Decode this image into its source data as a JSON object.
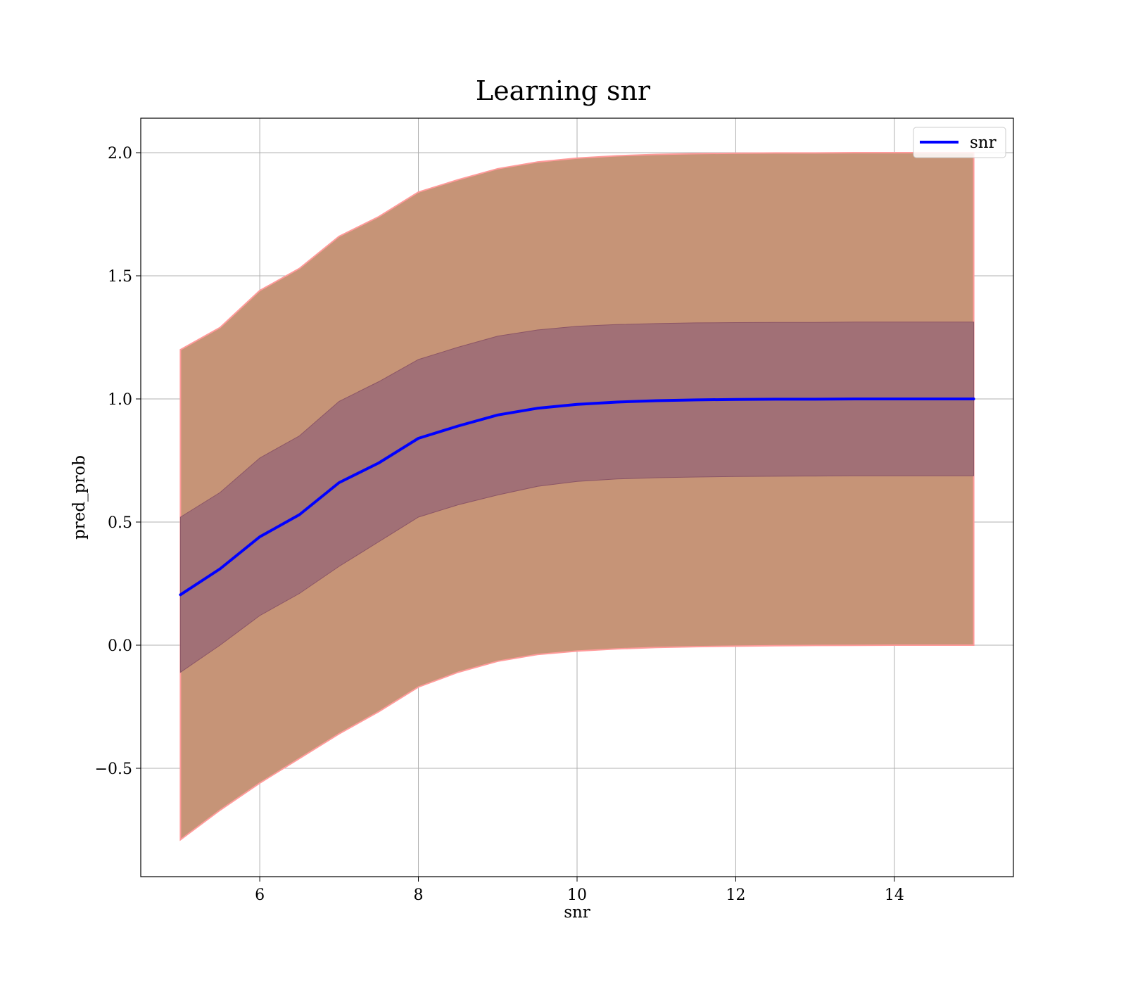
{
  "chart_data": {
    "type": "line",
    "title": "Learning snr",
    "xlabel": "snr",
    "ylabel": "pred_prob",
    "xlim": [
      4.5,
      15.5
    ],
    "ylim": [
      -0.94,
      2.14
    ],
    "xticks": [
      6,
      8,
      10,
      12,
      14
    ],
    "xtick_labels": [
      "6",
      "8",
      "10",
      "12",
      "14"
    ],
    "yticks": [
      -0.5,
      0.0,
      0.5,
      1.0,
      1.5,
      2.0
    ],
    "ytick_labels": [
      "−0.5",
      "0.0",
      "0.5",
      "1.0",
      "1.5",
      "2.0"
    ],
    "grid": true,
    "legend": {
      "position": "top-right",
      "entries": [
        "snr"
      ]
    },
    "colors": {
      "line": "#0000ff",
      "outer_band": "#c69477",
      "outer_band_edge": "#ff9a9a",
      "inner_band": "#a17076",
      "inner_band_edge": "#8b5566"
    },
    "x": [
      5.0,
      5.5,
      6.0,
      6.5,
      7.0,
      7.5,
      8.0,
      8.5,
      9.0,
      9.5,
      10.0,
      10.5,
      11.0,
      11.5,
      12.0,
      12.5,
      13.0,
      13.5,
      14.0,
      14.5,
      15.0
    ],
    "series": [
      {
        "name": "snr",
        "values": [
          0.205,
          0.31,
          0.44,
          0.53,
          0.66,
          0.74,
          0.84,
          0.89,
          0.935,
          0.962,
          0.978,
          0.987,
          0.993,
          0.996,
          0.998,
          0.999,
          0.999,
          1.0,
          1.0,
          1.0,
          1.0
        ]
      }
    ],
    "bands": [
      {
        "kind": "outer",
        "lower": [
          -0.79,
          -0.67,
          -0.56,
          -0.46,
          -0.36,
          -0.27,
          -0.17,
          -0.11,
          -0.065,
          -0.038,
          -0.024,
          -0.015,
          -0.009,
          -0.006,
          -0.004,
          -0.002,
          -0.001,
          -0.0005,
          0.0,
          0.0,
          0.0
        ],
        "upper": [
          1.2,
          1.29,
          1.44,
          1.53,
          1.66,
          1.74,
          1.84,
          1.89,
          1.935,
          1.962,
          1.978,
          1.987,
          1.993,
          1.996,
          1.998,
          1.999,
          1.999,
          2.0,
          2.0,
          2.0,
          2.0
        ]
      },
      {
        "kind": "inner",
        "lower": [
          -0.11,
          0.0,
          0.12,
          0.21,
          0.32,
          0.42,
          0.52,
          0.57,
          0.61,
          0.645,
          0.665,
          0.675,
          0.68,
          0.683,
          0.685,
          0.686,
          0.687,
          0.688,
          0.688,
          0.688,
          0.688
        ],
        "upper": [
          0.52,
          0.62,
          0.76,
          0.85,
          0.99,
          1.07,
          1.16,
          1.21,
          1.255,
          1.28,
          1.295,
          1.302,
          1.306,
          1.309,
          1.31,
          1.311,
          1.311,
          1.312,
          1.312,
          1.312,
          1.312
        ]
      }
    ]
  }
}
